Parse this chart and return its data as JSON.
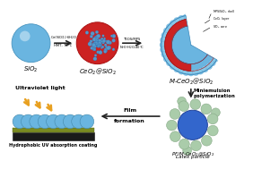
{
  "bg_color": "#ffffff",
  "sio2_color": "#6ab5e0",
  "sio2_edge": "#4a95c0",
  "sio2_label": "SiO$_2$",
  "ceo2sio2_red": "#cc2222",
  "ceo2sio2_dots": "#5599cc",
  "ceo2sio2_label": "CeO$_2$@SiO$_2$",
  "mceo2_blue": "#6ab5e0",
  "mceo2_red": "#cc2222",
  "mceo2_label": "M-CeO$_2$@SiO$_2$",
  "arrow_color": "#222222",
  "arrow1_text1": "Ce(NO$_3$)$_2$$\\cdot$6H$_2$O",
  "arrow1_text2": "HMT, 75°C",
  "arrow2_text1": "TEOS/MPS",
  "arrow2_text2": "NH$_3$$\\cdot$H$_2$O,40°C",
  "down_arrow_text1": "Miniemulsion",
  "down_arrow_text2": "polymerization",
  "latex_core_color": "#3366cc",
  "latex_small_color": "#aaccaa",
  "latex_label1": "PF/M-CeO$_2$@SiO$_2$",
  "latex_label2": "Latex particle",
  "film_arrow_text1": "Film",
  "film_arrow_text2": "formation",
  "coating_dark": "#1a1a1a",
  "coating_olive": "#7a8a22",
  "coating_ball": "#6ab5e0",
  "coating_label": "Hydrophobic UV absorption coating",
  "uv_color": "#e8a020",
  "uv_label": "Ultraviolet light",
  "leg_mps": "MPS/SiO$_2$ shell",
  "leg_ceo2": "CeO$_2$ layer",
  "leg_sio2": "SiO$_2$ core"
}
